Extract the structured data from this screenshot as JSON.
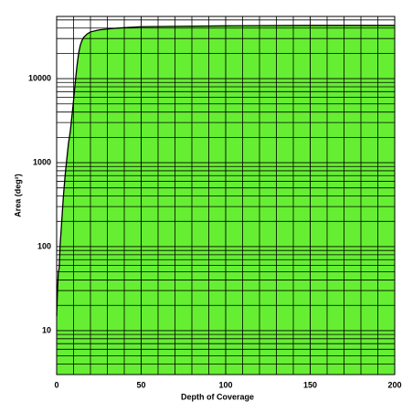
{
  "chart_data": {
    "type": "area",
    "xlabel": "Depth of Coverage",
    "ylabel": "Area (deg²)",
    "x": [
      0,
      0.5,
      1,
      1.5,
      2,
      3,
      4,
      5,
      6,
      7,
      8,
      9,
      10,
      11,
      12,
      13,
      14,
      15,
      16,
      18,
      20,
      25,
      30,
      40,
      50,
      75,
      100,
      150,
      200
    ],
    "values": [
      15,
      30,
      50,
      55,
      100,
      200,
      400,
      700,
      1100,
      1700,
      2300,
      3500,
      5500,
      9000,
      14000,
      20000,
      25000,
      28500,
      31000,
      34000,
      36000,
      38000,
      39000,
      40500,
      41500,
      42000,
      42500,
      43000,
      43000
    ],
    "color": "#66ee33",
    "edge_color": "#000000",
    "xlim": [
      0,
      200
    ],
    "xticks": [
      0,
      50,
      100,
      150,
      200
    ],
    "minor_xticks": [
      10,
      20,
      30,
      40,
      60,
      70,
      80,
      90,
      110,
      120,
      130,
      140,
      160,
      170,
      180,
      190
    ],
    "ylim": [
      3,
      55000
    ],
    "yscale": "log",
    "yticks": [
      10,
      100,
      1000,
      10000
    ],
    "minor_yticks": [
      4,
      5,
      6,
      7,
      8,
      9,
      20,
      30,
      40,
      50,
      60,
      70,
      80,
      90,
      200,
      300,
      400,
      500,
      600,
      700,
      800,
      900,
      2000,
      3000,
      4000,
      5000,
      6000,
      7000,
      8000,
      9000,
      20000,
      30000,
      40000,
      50000
    ],
    "grid": true
  }
}
